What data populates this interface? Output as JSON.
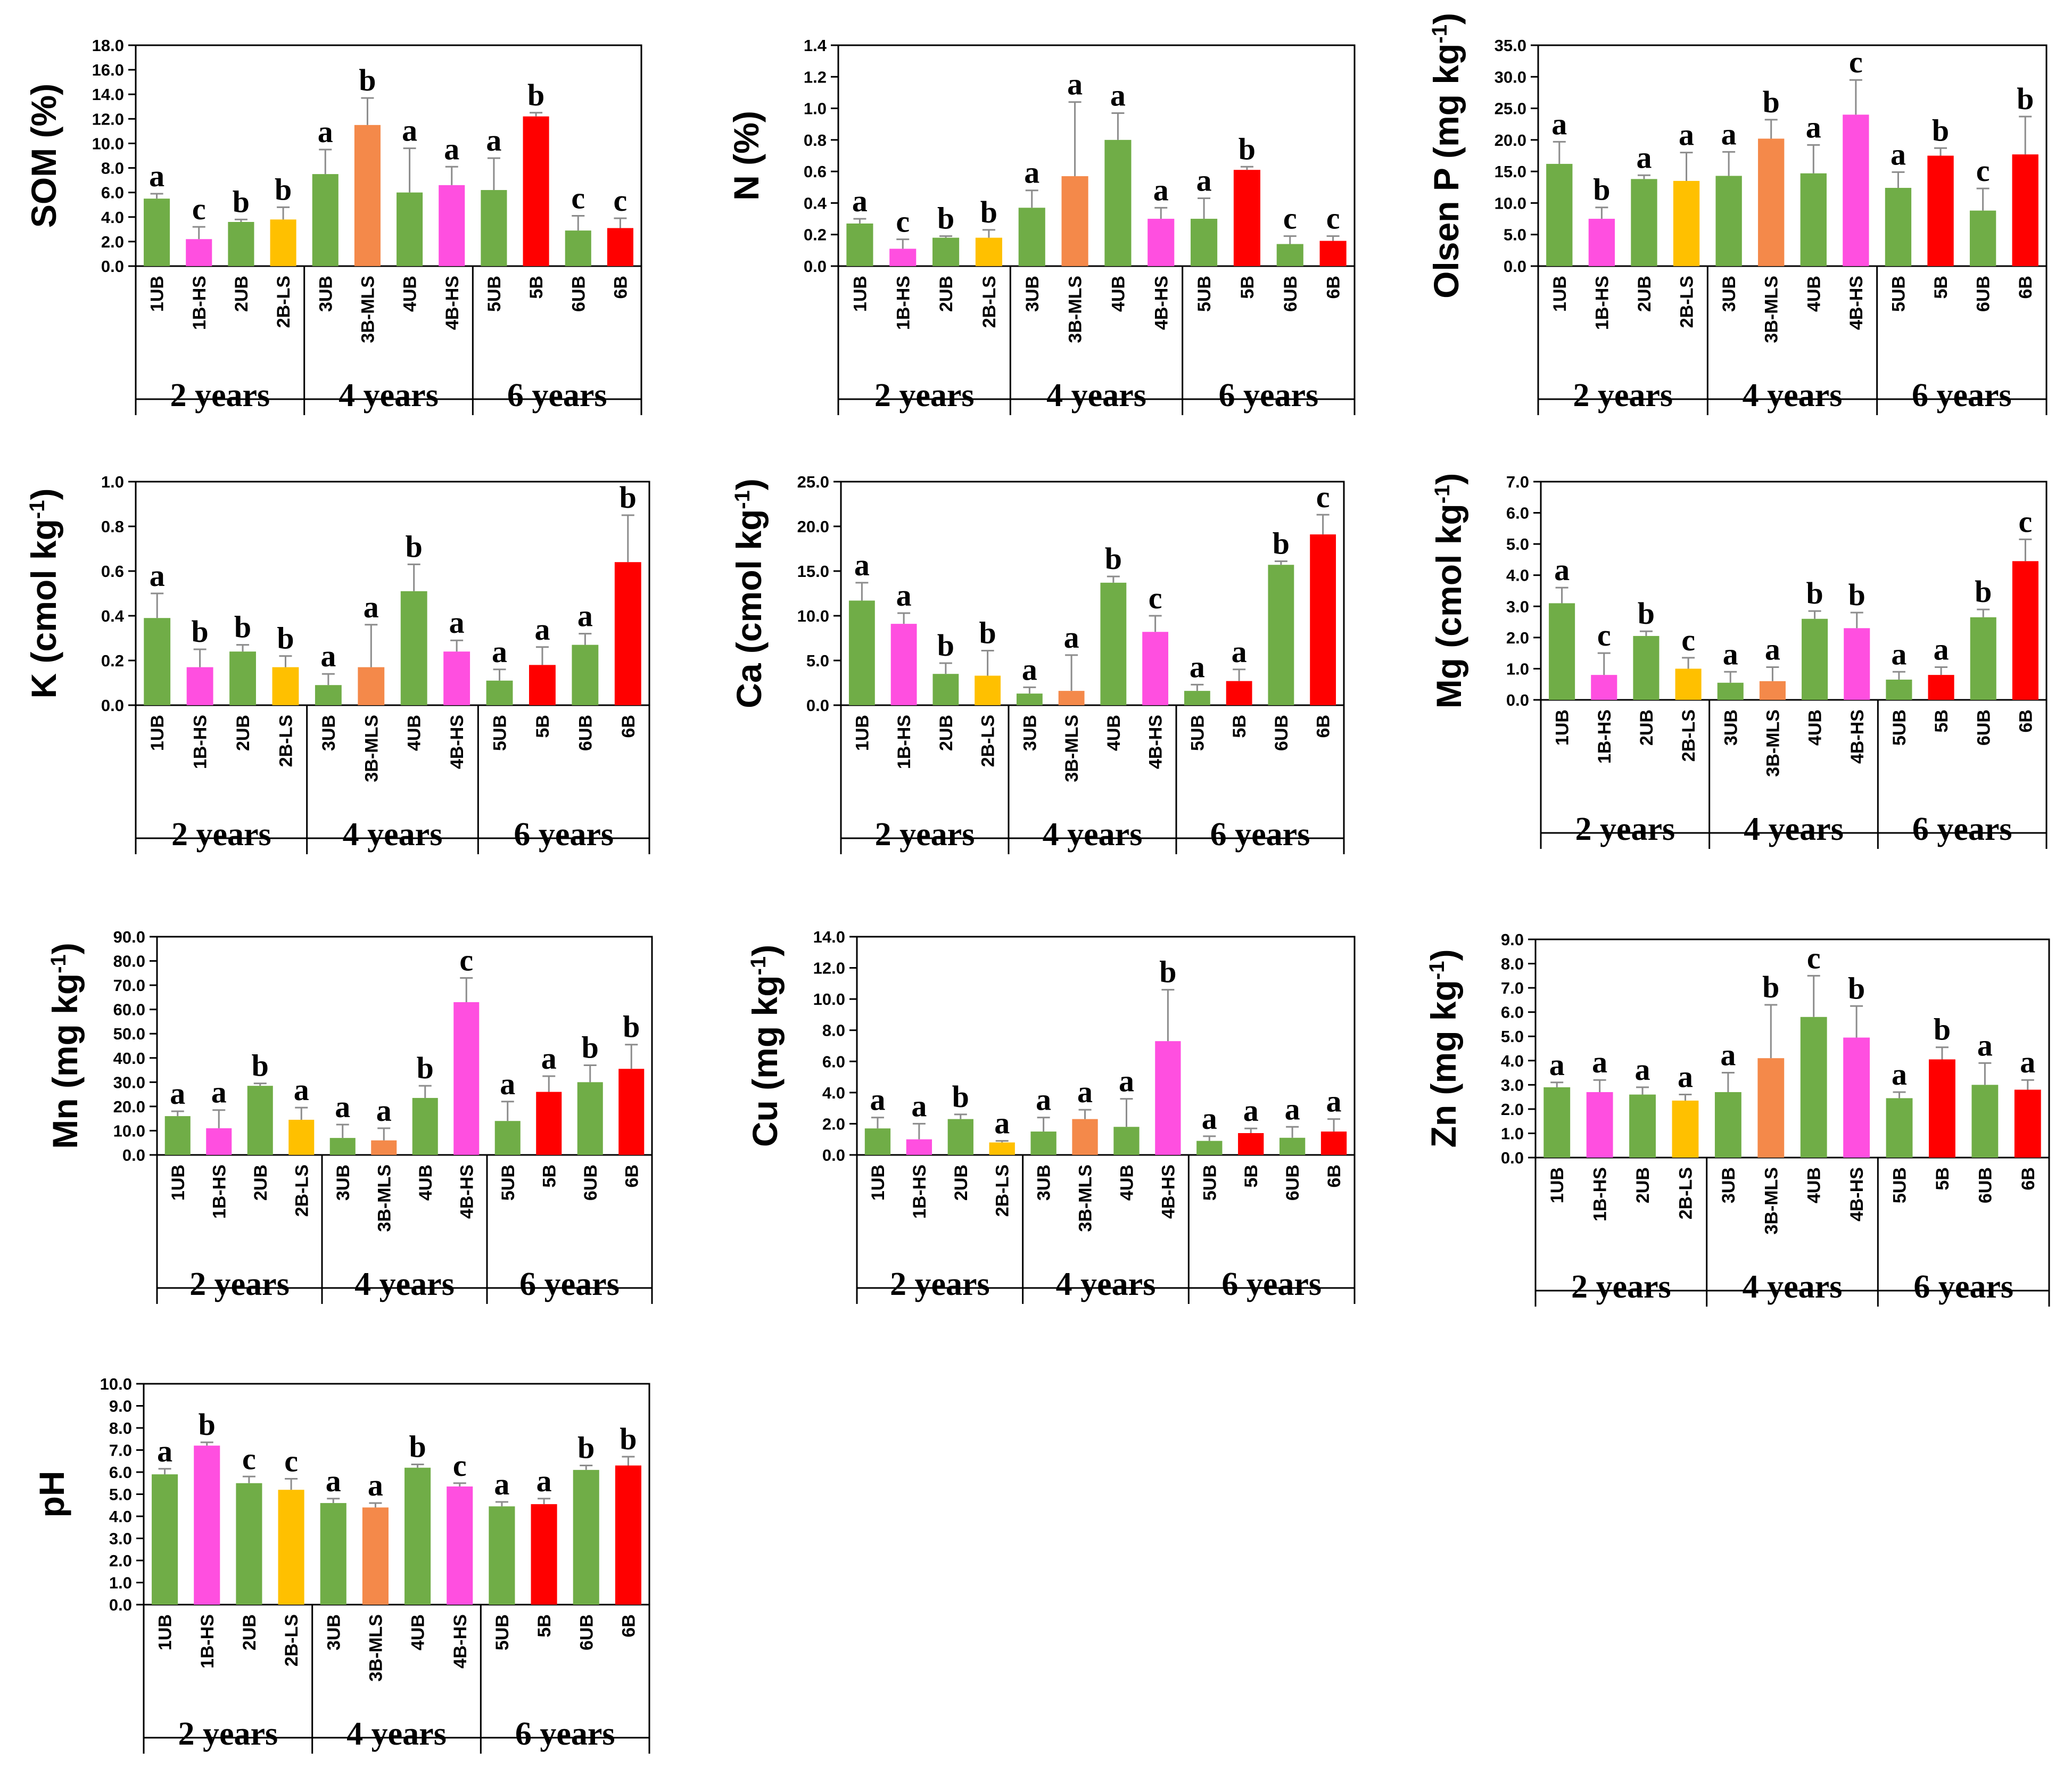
{
  "colors": {
    "UB": "#70AD47",
    "HS": "#FF4FE0",
    "LS": "#FFC000",
    "MLS": "#F4894A",
    "B": "#FF0000",
    "axis": "#000000",
    "error": "#8c8c8c"
  },
  "chart_data": [
    {
      "type": "bar",
      "id": "som",
      "ylabel": "SOM (%)",
      "ylabel_main": "SOM (%)",
      "ylabel_sup": "",
      "ylim": [
        0,
        18
      ],
      "ystep": 2,
      "decimals": 1,
      "categories": [
        "1UB",
        "1B-HS",
        "2UB",
        "2B-LS",
        "3UB",
        "3B-MLS",
        "4UB",
        "4B-HS",
        "5UB",
        "5B",
        "6UB",
        "6B"
      ],
      "bar_colors": [
        "UB",
        "HS",
        "UB",
        "LS",
        "UB",
        "MLS",
        "UB",
        "HS",
        "UB",
        "B",
        "UB",
        "B"
      ],
      "groups": [
        "2 years",
        "4 years",
        "6 years"
      ],
      "values": [
        5.5,
        2.2,
        3.6,
        3.8,
        7.5,
        11.5,
        6.0,
        6.6,
        6.2,
        12.2,
        2.9,
        3.1
      ],
      "errors": [
        0.4,
        1.0,
        0.2,
        1.0,
        2.0,
        2.2,
        3.6,
        1.5,
        2.6,
        0.3,
        1.2,
        0.8
      ],
      "letters": [
        "a",
        "c",
        "b",
        "b",
        "a",
        "b",
        "a",
        "a",
        "a",
        "b",
        "c",
        "c"
      ]
    },
    {
      "type": "bar",
      "id": "n",
      "ylabel": "N (%)",
      "ylabel_main": "N (%)",
      "ylabel_sup": "",
      "ylim": [
        0,
        1.4
      ],
      "ystep": 0.2,
      "decimals": 1,
      "categories": [
        "1UB",
        "1B-HS",
        "2UB",
        "2B-LS",
        "3UB",
        "3B-MLS",
        "4UB",
        "4B-HS",
        "5UB",
        "5B",
        "6UB",
        "6B"
      ],
      "bar_colors": [
        "UB",
        "HS",
        "UB",
        "LS",
        "UB",
        "MLS",
        "UB",
        "HS",
        "UB",
        "B",
        "UB",
        "B"
      ],
      "groups": [
        "2 years",
        "4 years",
        "6 years"
      ],
      "values": [
        0.27,
        0.11,
        0.18,
        0.18,
        0.37,
        0.57,
        0.8,
        0.3,
        0.3,
        0.61,
        0.14,
        0.16
      ],
      "errors": [
        0.03,
        0.06,
        0.01,
        0.05,
        0.11,
        0.47,
        0.17,
        0.07,
        0.13,
        0.02,
        0.05,
        0.03
      ],
      "letters": [
        "a",
        "c",
        "b",
        "b",
        "a",
        "a",
        "a",
        "a",
        "a",
        "b",
        "c",
        "c"
      ]
    },
    {
      "type": "bar",
      "id": "olsenp",
      "ylabel": "Olsen P (mg kg-1)",
      "ylabel_main": "Olsen P (mg kg",
      "ylabel_sup": "-1",
      "ylim": [
        0,
        35
      ],
      "ystep": 5,
      "decimals": 1,
      "categories": [
        "1UB",
        "1B-HS",
        "2UB",
        "2B-LS",
        "3UB",
        "3B-MLS",
        "4UB",
        "4B-HS",
        "5UB",
        "5B",
        "6UB",
        "6B"
      ],
      "bar_colors": [
        "UB",
        "HS",
        "UB",
        "LS",
        "UB",
        "MLS",
        "UB",
        "HS",
        "UB",
        "B",
        "UB",
        "B"
      ],
      "groups": [
        "2 years",
        "4 years",
        "6 years"
      ],
      "values": [
        16.2,
        7.5,
        13.8,
        13.5,
        14.3,
        20.2,
        14.7,
        24.0,
        12.4,
        17.5,
        8.8,
        17.7
      ],
      "errors": [
        3.5,
        1.8,
        0.6,
        4.5,
        3.8,
        3.0,
        4.5,
        5.5,
        2.5,
        1.2,
        3.5,
        6.0
      ],
      "letters": [
        "a",
        "b",
        "a",
        "a",
        "a",
        "b",
        "a",
        "c",
        "a",
        "b",
        "c",
        "b"
      ]
    },
    {
      "type": "bar",
      "id": "k",
      "ylabel": "K (cmol kg-1)",
      "ylabel_main": "K (cmol kg",
      "ylabel_sup": "-1",
      "ylim": [
        0,
        1.0
      ],
      "ystep": 0.2,
      "decimals": 1,
      "categories": [
        "1UB",
        "1B-HS",
        "2UB",
        "2B-LS",
        "3UB",
        "3B-MLS",
        "4UB",
        "4B-HS",
        "5UB",
        "5B",
        "6UB",
        "6B"
      ],
      "bar_colors": [
        "UB",
        "HS",
        "UB",
        "LS",
        "UB",
        "MLS",
        "UB",
        "HS",
        "UB",
        "B",
        "UB",
        "B"
      ],
      "groups": [
        "2 years",
        "4 years",
        "6 years"
      ],
      "values": [
        0.39,
        0.17,
        0.24,
        0.17,
        0.09,
        0.17,
        0.51,
        0.24,
        0.11,
        0.18,
        0.27,
        0.64
      ],
      "errors": [
        0.11,
        0.08,
        0.03,
        0.05,
        0.05,
        0.19,
        0.12,
        0.05,
        0.05,
        0.08,
        0.05,
        0.21
      ],
      "letters": [
        "a",
        "b",
        "b",
        "b",
        "a",
        "a",
        "b",
        "a",
        "a",
        "a",
        "a",
        "b"
      ]
    },
    {
      "type": "bar",
      "id": "ca",
      "ylabel": "Ca (cmol kg-1)",
      "ylabel_main": "Ca (cmol kg",
      "ylabel_sup": "-1",
      "ylim": [
        0,
        25
      ],
      "ystep": 5,
      "decimals": 1,
      "categories": [
        "1UB",
        "1B-HS",
        "2UB",
        "2B-LS",
        "3UB",
        "3B-MLS",
        "4UB",
        "4B-HS",
        "5UB",
        "5B",
        "6UB",
        "6B"
      ],
      "bar_colors": [
        "UB",
        "HS",
        "UB",
        "LS",
        "UB",
        "MLS",
        "UB",
        "HS",
        "UB",
        "B",
        "UB",
        "B"
      ],
      "groups": [
        "2 years",
        "4 years",
        "6 years"
      ],
      "values": [
        11.7,
        9.1,
        3.5,
        3.3,
        1.3,
        1.6,
        13.7,
        8.2,
        1.6,
        2.7,
        15.7,
        19.1
      ],
      "errors": [
        2.0,
        1.2,
        1.2,
        2.8,
        0.7,
        4.0,
        0.7,
        1.8,
        0.7,
        1.3,
        0.4,
        2.2
      ],
      "letters": [
        "a",
        "a",
        "b",
        "b",
        "a",
        "a",
        "b",
        "c",
        "a",
        "a",
        "b",
        "c"
      ]
    },
    {
      "type": "bar",
      "id": "mg",
      "ylabel": "Mg (cmol kg-1)",
      "ylabel_main": "Mg (cmol kg",
      "ylabel_sup": "-1",
      "ylim": [
        0,
        7
      ],
      "ystep": 1,
      "decimals": 1,
      "categories": [
        "1UB",
        "1B-HS",
        "2UB",
        "2B-LS",
        "3UB",
        "3B-MLS",
        "4UB",
        "4B-HS",
        "5UB",
        "5B",
        "6UB",
        "6B"
      ],
      "bar_colors": [
        "UB",
        "HS",
        "UB",
        "LS",
        "UB",
        "MLS",
        "UB",
        "HS",
        "UB",
        "B",
        "UB",
        "B"
      ],
      "groups": [
        "2 years",
        "4 years",
        "6 years"
      ],
      "values": [
        3.1,
        0.8,
        2.05,
        1.0,
        0.55,
        0.6,
        2.6,
        2.3,
        0.65,
        0.8,
        2.65,
        4.45
      ],
      "errors": [
        0.5,
        0.7,
        0.15,
        0.35,
        0.35,
        0.45,
        0.25,
        0.5,
        0.25,
        0.25,
        0.25,
        0.7
      ],
      "letters": [
        "a",
        "c",
        "b",
        "c",
        "a",
        "a",
        "b",
        "b",
        "a",
        "a",
        "b",
        "c"
      ]
    },
    {
      "type": "bar",
      "id": "mn",
      "ylabel": "Mn (mg kg-1)",
      "ylabel_main": "Mn (mg kg",
      "ylabel_sup": "-1",
      "ylim": [
        0,
        90
      ],
      "ystep": 10,
      "decimals": 1,
      "categories": [
        "1UB",
        "1B-HS",
        "2UB",
        "2B-LS",
        "3UB",
        "3B-MLS",
        "4UB",
        "4B-HS",
        "5UB",
        "5B",
        "6UB",
        "6B"
      ],
      "bar_colors": [
        "UB",
        "HS",
        "UB",
        "LS",
        "UB",
        "MLS",
        "UB",
        "HS",
        "UB",
        "B",
        "UB",
        "B"
      ],
      "groups": [
        "2 years",
        "4 years",
        "6 years"
      ],
      "values": [
        16.0,
        11.0,
        28.5,
        14.5,
        7.0,
        6.0,
        23.5,
        63.0,
        14.0,
        26.0,
        30.0,
        35.5
      ],
      "errors": [
        2.0,
        7.5,
        1.0,
        5.0,
        5.5,
        5.0,
        5.0,
        10.0,
        8.0,
        6.5,
        7.0,
        10.0
      ],
      "letters": [
        "a",
        "a",
        "b",
        "a",
        "a",
        "a",
        "b",
        "c",
        "a",
        "a",
        "b",
        "b"
      ]
    },
    {
      "type": "bar",
      "id": "cu",
      "ylabel": "Cu (mg kg-1)",
      "ylabel_main": "Cu (mg kg",
      "ylabel_sup": "-1",
      "ylim": [
        0,
        14
      ],
      "ystep": 2,
      "decimals": 1,
      "categories": [
        "1UB",
        "1B-HS",
        "2UB",
        "2B-LS",
        "3UB",
        "3B-MLS",
        "4UB",
        "4B-HS",
        "5UB",
        "5B",
        "6UB",
        "6B"
      ],
      "bar_colors": [
        "UB",
        "HS",
        "UB",
        "LS",
        "UB",
        "MLS",
        "UB",
        "HS",
        "UB",
        "B",
        "UB",
        "B"
      ],
      "groups": [
        "2 years",
        "4 years",
        "6 years"
      ],
      "values": [
        1.7,
        1.0,
        2.3,
        0.8,
        1.5,
        2.3,
        1.8,
        7.3,
        0.9,
        1.4,
        1.1,
        1.5
      ],
      "errors": [
        0.7,
        1.0,
        0.3,
        0.1,
        0.9,
        0.6,
        1.8,
        3.3,
        0.3,
        0.3,
        0.7,
        0.8
      ],
      "letters": [
        "a",
        "a",
        "b",
        "a",
        "a",
        "a",
        "a",
        "b",
        "a",
        "a",
        "a",
        "a"
      ]
    },
    {
      "type": "bar",
      "id": "zn",
      "ylabel": "Zn (mg kg-1)",
      "ylabel_main": "Zn (mg kg",
      "ylabel_sup": "-1",
      "ylim": [
        0,
        9
      ],
      "ystep": 1,
      "decimals": 1,
      "categories": [
        "1UB",
        "1B-HS",
        "2UB",
        "2B-LS",
        "3UB",
        "3B-MLS",
        "4UB",
        "4B-HS",
        "5UB",
        "5B",
        "6UB",
        "6B"
      ],
      "bar_colors": [
        "UB",
        "HS",
        "UB",
        "LS",
        "UB",
        "MLS",
        "UB",
        "HS",
        "UB",
        "B",
        "UB",
        "B"
      ],
      "groups": [
        "2 years",
        "4 years",
        "6 years"
      ],
      "values": [
        2.9,
        2.7,
        2.6,
        2.35,
        2.7,
        4.1,
        5.8,
        4.95,
        2.45,
        4.05,
        3.0,
        2.8
      ],
      "errors": [
        0.2,
        0.5,
        0.3,
        0.25,
        0.8,
        2.2,
        1.7,
        1.3,
        0.25,
        0.5,
        0.9,
        0.4
      ],
      "letters": [
        "a",
        "a",
        "a",
        "a",
        "a",
        "b",
        "c",
        "b",
        "a",
        "b",
        "a",
        "a"
      ]
    },
    {
      "type": "bar",
      "id": "ph",
      "ylabel": "pH",
      "ylabel_main": "pH",
      "ylabel_sup": "",
      "ylim": [
        0,
        10
      ],
      "ystep": 1,
      "decimals": 1,
      "categories": [
        "1UB",
        "1B-HS",
        "2UB",
        "2B-LS",
        "3UB",
        "3B-MLS",
        "4UB",
        "4B-HS",
        "5UB",
        "5B",
        "6UB",
        "6B"
      ],
      "bar_colors": [
        "UB",
        "HS",
        "UB",
        "LS",
        "UB",
        "MLS",
        "UB",
        "HS",
        "UB",
        "B",
        "UB",
        "B"
      ],
      "groups": [
        "2 years",
        "4 years",
        "6 years"
      ],
      "values": [
        5.9,
        7.2,
        5.5,
        5.2,
        4.6,
        4.4,
        6.2,
        5.35,
        4.45,
        4.55,
        6.1,
        6.3
      ],
      "errors": [
        0.25,
        0.15,
        0.3,
        0.5,
        0.2,
        0.2,
        0.15,
        0.15,
        0.2,
        0.25,
        0.2,
        0.4
      ],
      "letters": [
        "a",
        "b",
        "c",
        "c",
        "a",
        "a",
        "b",
        "c",
        "a",
        "a",
        "b",
        "b"
      ]
    }
  ]
}
